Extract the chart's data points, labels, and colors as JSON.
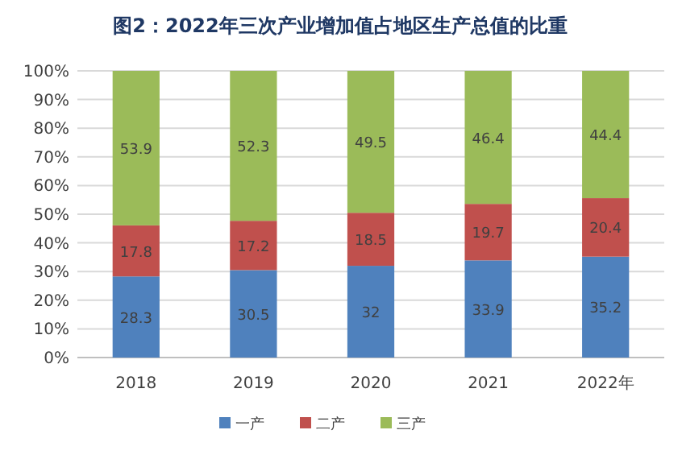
{
  "chart_data": {
    "type": "bar",
    "stacked": true,
    "title": "图2：2022年三次产业增加值占地区生产总值的比重",
    "categories": [
      "2018",
      "2019",
      "2020",
      "2021",
      "2022年"
    ],
    "series": [
      {
        "name": "一产",
        "color": "#4f81bd",
        "values": [
          28.3,
          30.5,
          32,
          33.9,
          35.2
        ]
      },
      {
        "name": "二产",
        "color": "#c0504d",
        "values": [
          17.8,
          17.2,
          18.5,
          19.7,
          20.4
        ]
      },
      {
        "name": "三产",
        "color": "#9bbb59",
        "values": [
          53.9,
          52.3,
          49.5,
          46.4,
          44.4
        ]
      }
    ],
    "ylim": [
      0,
      100
    ],
    "yticks": [
      {
        "value": 0,
        "label": "0%"
      },
      {
        "value": 10,
        "label": "10%"
      },
      {
        "value": 20,
        "label": "20%"
      },
      {
        "value": 30,
        "label": "30%"
      },
      {
        "value": 40,
        "label": "40%"
      },
      {
        "value": 50,
        "label": "50%"
      },
      {
        "value": 60,
        "label": "60%"
      },
      {
        "value": 70,
        "label": "70%"
      },
      {
        "value": 80,
        "label": "80%"
      },
      {
        "value": 90,
        "label": "90%"
      },
      {
        "value": 100,
        "label": "100%"
      }
    ],
    "grid": "y",
    "legend": "bottom",
    "data_labels": true
  }
}
